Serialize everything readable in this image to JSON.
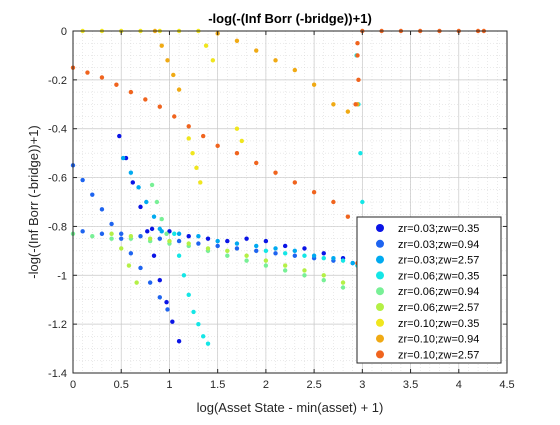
{
  "chart_data": {
    "type": "scatter",
    "title": "-log(-(Inf Borr (-bridge))+1)",
    "xlabel": "log(Asset State - min(asset) + 1)",
    "ylabel": "-log(-(Inf Borr (-bridge))+1)",
    "xlim": [
      0,
      4.5
    ],
    "ylim": [
      -1.4,
      0
    ],
    "x_ticks": [
      0,
      0.5,
      1,
      1.5,
      2,
      2.5,
      3,
      3.5,
      4,
      4.5
    ],
    "y_ticks": [
      0,
      -0.2,
      -0.4,
      -0.6,
      -0.8,
      -1,
      -1.2,
      -1.4
    ],
    "x_tick_labels": [
      "0",
      "0.5",
      "1",
      "1.5",
      "2",
      "2.5",
      "3",
      "3.5",
      "4",
      "4.5"
    ],
    "y_tick_labels": [
      "0",
      "-0.2",
      "-0.4",
      "-0.6",
      "-0.8",
      "-1",
      "-1.2",
      "-1.4"
    ],
    "grid": true,
    "minor_grid": true,
    "legend_position": "bottom-right",
    "series": [
      {
        "name": "zr=0.03;zw=0.35",
        "color": "#0a14e6",
        "points": [
          [
            0.82,
            -0.81
          ],
          [
            1.0,
            -0.82
          ],
          [
            1.2,
            -0.84
          ],
          [
            1.4,
            -0.85
          ],
          [
            1.6,
            -0.86
          ],
          [
            1.8,
            -0.85
          ],
          [
            2.0,
            -0.86
          ],
          [
            2.2,
            -0.88
          ],
          [
            2.4,
            -0.89
          ],
          [
            2.6,
            -0.91
          ],
          [
            2.8,
            -0.93
          ],
          [
            2.95,
            -0.96
          ],
          [
            0.48,
            -0.43
          ],
          [
            0.55,
            -0.52
          ],
          [
            0.62,
            -0.62
          ],
          [
            0.7,
            -0.72
          ],
          [
            0.77,
            -0.82
          ],
          [
            0.84,
            -0.92
          ],
          [
            0.9,
            -1.02
          ],
          [
            0.97,
            -1.11
          ],
          [
            1.03,
            -1.19
          ],
          [
            1.1,
            -1.27
          ]
        ]
      },
      {
        "name": "zr=0.03;zw=0.94",
        "color": "#1e64f0",
        "points": [
          [
            0.1,
            -0.82
          ],
          [
            0.3,
            -0.83
          ],
          [
            0.5,
            -0.83
          ],
          [
            0.7,
            -0.84
          ],
          [
            0.9,
            -0.85
          ],
          [
            1.1,
            -0.86
          ],
          [
            1.3,
            -0.87
          ],
          [
            1.5,
            -0.88
          ],
          [
            1.7,
            -0.89
          ],
          [
            1.9,
            -0.9
          ],
          [
            2.1,
            -0.91
          ],
          [
            2.3,
            -0.92
          ],
          [
            2.5,
            -0.93
          ],
          [
            2.7,
            -0.94
          ],
          [
            2.9,
            -0.95
          ],
          [
            0.0,
            -0.55
          ],
          [
            0.1,
            -0.61
          ],
          [
            0.2,
            -0.67
          ],
          [
            0.3,
            -0.73
          ],
          [
            0.4,
            -0.79
          ],
          [
            0.5,
            -0.85
          ],
          [
            0.6,
            -0.91
          ],
          [
            0.7,
            -0.97
          ],
          [
            0.8,
            -1.03
          ],
          [
            0.9,
            -1.09
          ],
          [
            0.98,
            -1.14
          ]
        ]
      },
      {
        "name": "zr=0.03;zw=2.57",
        "color": "#00aaf0",
        "points": [
          [
            0.9,
            -0.81
          ],
          [
            1.1,
            -0.83
          ],
          [
            1.3,
            -0.84
          ],
          [
            1.5,
            -0.86
          ],
          [
            1.7,
            -0.87
          ],
          [
            1.9,
            -0.88
          ],
          [
            2.1,
            -0.89
          ],
          [
            2.3,
            -0.9
          ],
          [
            2.5,
            -0.92
          ],
          [
            2.7,
            -0.93
          ],
          [
            2.9,
            -0.95
          ],
          [
            0.52,
            -0.52
          ],
          [
            0.6,
            -0.58
          ],
          [
            0.68,
            -0.64
          ],
          [
            0.76,
            -0.7
          ],
          [
            0.84,
            -0.76
          ],
          [
            0.92,
            -0.82
          ]
        ]
      },
      {
        "name": "zr=0.06;zw=0.35",
        "color": "#14e6e6",
        "points": [
          [
            2.0,
            -0.9
          ],
          [
            2.2,
            -0.91
          ],
          [
            2.4,
            -0.92
          ],
          [
            2.6,
            -0.93
          ],
          [
            2.8,
            -0.94
          ],
          [
            2.95,
            -0.96
          ],
          [
            1.05,
            -0.83
          ],
          [
            1.1,
            -0.92
          ],
          [
            1.15,
            -1.0
          ],
          [
            1.2,
            -1.08
          ],
          [
            1.25,
            -1.15
          ],
          [
            1.3,
            -1.2
          ],
          [
            1.35,
            -1.25
          ],
          [
            1.4,
            -1.28
          ],
          [
            2.94,
            -0.1
          ],
          [
            2.96,
            -0.3
          ],
          [
            2.98,
            -0.5
          ],
          [
            3.0,
            -0.7
          ],
          [
            3.02,
            -0.9
          ]
        ]
      },
      {
        "name": "zr=0.06;zw=0.94",
        "color": "#78f096",
        "points": [
          [
            0.0,
            -0.83
          ],
          [
            0.2,
            -0.84
          ],
          [
            0.4,
            -0.85
          ],
          [
            0.6,
            -0.85
          ],
          [
            0.8,
            -0.86
          ],
          [
            1.0,
            -0.87
          ],
          [
            1.2,
            -0.88
          ],
          [
            1.4,
            -0.9
          ],
          [
            1.6,
            -0.92
          ],
          [
            1.8,
            -0.94
          ],
          [
            2.0,
            -0.96
          ],
          [
            2.2,
            -0.98
          ],
          [
            2.4,
            -1.0
          ],
          [
            2.6,
            -1.02
          ],
          [
            2.8,
            -1.05
          ],
          [
            0.82,
            -0.63
          ],
          [
            0.87,
            -0.7
          ],
          [
            0.92,
            -0.77
          ],
          [
            0.97,
            -0.83
          ]
        ]
      },
      {
        "name": "zr=0.06;zw=2.57",
        "color": "#b4f046",
        "points": [
          [
            0.4,
            -0.83
          ],
          [
            0.6,
            -0.84
          ],
          [
            0.8,
            -0.85
          ],
          [
            1.0,
            -0.86
          ],
          [
            1.2,
            -0.87
          ],
          [
            1.4,
            -0.89
          ],
          [
            1.6,
            -0.9
          ],
          [
            1.8,
            -0.92
          ],
          [
            2.0,
            -0.94
          ],
          [
            2.2,
            -0.96
          ],
          [
            2.4,
            -0.98
          ],
          [
            2.6,
            -1.0
          ],
          [
            2.8,
            -1.03
          ],
          [
            0.5,
            -0.89
          ],
          [
            0.58,
            -0.96
          ],
          [
            0.66,
            -1.03
          ]
        ]
      },
      {
        "name": "zr=0.10;zw=0.35",
        "color": "#f0e61e",
        "points": [
          [
            0.1,
            0.0
          ],
          [
            0.3,
            0.0
          ],
          [
            0.5,
            0.0
          ],
          [
            0.7,
            0.0
          ],
          [
            0.9,
            0.0
          ],
          [
            1.1,
            0.0
          ],
          [
            1.3,
            0.0
          ],
          [
            1.38,
            -0.06
          ],
          [
            1.45,
            -0.12
          ],
          [
            1.2,
            -0.44
          ],
          [
            1.24,
            -0.5
          ],
          [
            1.28,
            -0.56
          ],
          [
            1.32,
            -0.62
          ],
          [
            1.7,
            -0.4
          ],
          [
            1.75,
            -0.45
          ]
        ]
      },
      {
        "name": "zr=0.10;zw=0.94",
        "color": "#f0aa14",
        "points": [
          [
            1.5,
            -0.01
          ],
          [
            1.7,
            -0.04
          ],
          [
            1.9,
            -0.08
          ],
          [
            2.1,
            -0.12
          ],
          [
            2.3,
            -0.16
          ],
          [
            2.5,
            -0.22
          ],
          [
            2.7,
            -0.3
          ],
          [
            2.85,
            -0.33
          ],
          [
            2.95,
            -0.3
          ],
          [
            0.85,
            -0.0
          ],
          [
            0.92,
            -0.06
          ],
          [
            0.98,
            -0.12
          ],
          [
            1.04,
            -0.18
          ],
          [
            1.1,
            -0.24
          ]
        ]
      },
      {
        "name": "zr=0.10;zw=2.57",
        "color": "#f0641e",
        "points": [
          [
            0.0,
            -0.15
          ],
          [
            0.15,
            -0.17
          ],
          [
            0.3,
            -0.19
          ],
          [
            0.45,
            -0.22
          ],
          [
            0.6,
            -0.25
          ],
          [
            0.75,
            -0.28
          ],
          [
            0.9,
            -0.31
          ],
          [
            1.05,
            -0.35
          ],
          [
            1.2,
            -0.39
          ],
          [
            1.35,
            -0.43
          ],
          [
            1.5,
            -0.47
          ],
          [
            1.7,
            -0.5
          ],
          [
            1.9,
            -0.54
          ],
          [
            2.1,
            -0.58
          ],
          [
            2.3,
            -0.62
          ],
          [
            2.5,
            -0.66
          ],
          [
            2.7,
            -0.7
          ],
          [
            2.85,
            -0.76
          ],
          [
            2.95,
            -0.95
          ],
          [
            2.95,
            -0.1
          ],
          [
            2.95,
            -0.05
          ],
          [
            2.93,
            -0.3
          ],
          [
            2.96,
            -0.2
          ],
          [
            3.0,
            0.0
          ],
          [
            3.2,
            0.0
          ],
          [
            3.4,
            0.0
          ],
          [
            3.6,
            0.0
          ],
          [
            3.8,
            0.0
          ],
          [
            4.0,
            0.0
          ],
          [
            4.2,
            0.0
          ],
          [
            4.26,
            0.0
          ]
        ]
      }
    ]
  }
}
